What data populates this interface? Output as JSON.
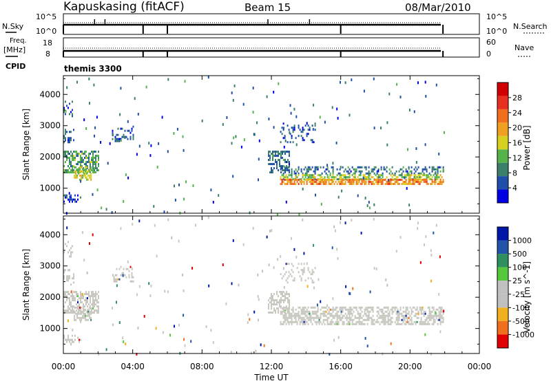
{
  "header": {
    "station": "Kapuskasing (fitACF)",
    "beam": "Beam 15",
    "date": "08/Mar/2010"
  },
  "aux_panels": {
    "nsky_label": "N.Sky",
    "nsky_ticks": [
      "10^5",
      "10^0"
    ],
    "nsearch_label": "N.Search",
    "nsearch_ticks": [
      "10^5",
      "10^0"
    ],
    "freq_label_1": "Freq.",
    "freq_label_2": "[MHz]",
    "freq_ticks": [
      "18",
      "8"
    ],
    "nave_label": "Nave",
    "nave_ticks": [
      "60",
      "0"
    ],
    "cpid_label": "CPID",
    "cpid_value": "themis 3300"
  },
  "x_axis": {
    "label": "Time UT",
    "ticks": [
      "00:00",
      "04:00",
      "08:00",
      "12:00",
      "16:00",
      "20:00",
      "00:00"
    ],
    "tick_hours": [
      0,
      4,
      8,
      12,
      16,
      20,
      24
    ],
    "range_hours": [
      0,
      24
    ]
  },
  "colors": {
    "power": [
      "#0000e6",
      "#1f4fa8",
      "#3a7f6a",
      "#54b44a",
      "#d8d020",
      "#f0a020",
      "#f07020",
      "#e83020",
      "#d00000"
    ],
    "velocity": [
      "#e00000",
      "#f07020",
      "#f0b020",
      "#c0c0c0",
      "#c0c0c0",
      "#56c83c",
      "#2f8f5e",
      "#2255aa",
      "#0018a8"
    ],
    "ground_scatter": "#c8c8c0"
  },
  "chart_data": [
    {
      "type": "heatmap",
      "panel": "power",
      "ylabel": "Slant Range [km]",
      "yticks": [
        1000,
        2000,
        3000,
        4000
      ],
      "ylim": [
        200,
        4600
      ],
      "xlim": [
        0,
        24
      ],
      "colorbar": {
        "label": "Power [dB]",
        "ticks": [
          "4",
          "8",
          "12",
          "16",
          "20",
          "24",
          "28"
        ],
        "range": [
          0,
          30
        ]
      },
      "regions": [
        {
          "t": [
            0.0,
            2.0
          ],
          "r": [
            1500,
            2200
          ],
          "v": 10,
          "density": 0.55
        },
        {
          "t": [
            0.6,
            1.6
          ],
          "r": [
            1300,
            1700
          ],
          "v": 14,
          "density": 0.5
        },
        {
          "t": [
            0.0,
            0.6
          ],
          "r": [
            2400,
            2900
          ],
          "v": 6,
          "density": 0.35
        },
        {
          "t": [
            0.0,
            0.5
          ],
          "r": [
            3300,
            3800
          ],
          "v": 5,
          "density": 0.25
        },
        {
          "t": [
            0.0,
            1.0
          ],
          "r": [
            600,
            800
          ],
          "v": 5,
          "density": 0.4
        },
        {
          "t": [
            2.8,
            4.0
          ],
          "r": [
            2500,
            3000
          ],
          "v": 6,
          "density": 0.3
        },
        {
          "t": [
            11.8,
            13.0
          ],
          "r": [
            1500,
            2200
          ],
          "v": 7,
          "density": 0.5
        },
        {
          "t": [
            12.5,
            21.9
          ],
          "r": [
            1450,
            1700
          ],
          "v": 7,
          "density": 0.35
        },
        {
          "t": [
            12.5,
            21.9
          ],
          "r": [
            1300,
            1450
          ],
          "v": 13,
          "density": 0.6
        },
        {
          "t": [
            12.5,
            21.9
          ],
          "r": [
            1150,
            1300
          ],
          "v": 20,
          "density": 0.75
        },
        {
          "t": [
            12.5,
            14.5
          ],
          "r": [
            2500,
            3100
          ],
          "v": 5,
          "density": 0.18
        }
      ]
    },
    {
      "type": "heatmap",
      "panel": "velocity",
      "ylabel": "Slant Range [km]",
      "yticks": [
        1000,
        2000,
        3000,
        4000
      ],
      "ylim": [
        200,
        4600
      ],
      "xlim": [
        0,
        24
      ],
      "colorbar": {
        "label": "Velocity [m s^-1]",
        "ticks": [
          "1000",
          "500",
          "100",
          "25",
          "-25",
          "-100",
          "-500",
          "-1000"
        ],
        "range": [
          -1000,
          1000
        ]
      },
      "regions": [
        {
          "t": [
            0.0,
            2.0
          ],
          "r": [
            1500,
            2200
          ],
          "v": 0,
          "density": 0.55
        },
        {
          "t": [
            0.6,
            1.6
          ],
          "r": [
            1300,
            1700
          ],
          "v": 0,
          "density": 0.5
        },
        {
          "t": [
            0.0,
            0.6
          ],
          "r": [
            2400,
            2900
          ],
          "v": 0,
          "density": 0.35
        },
        {
          "t": [
            0.0,
            0.5
          ],
          "r": [
            3300,
            3800
          ],
          "v": 0,
          "density": 0.25
        },
        {
          "t": [
            0.0,
            1.0
          ],
          "r": [
            600,
            800
          ],
          "v": 0,
          "density": 0.4
        },
        {
          "t": [
            2.8,
            4.0
          ],
          "r": [
            2500,
            3000
          ],
          "v": 0,
          "density": 0.3
        },
        {
          "t": [
            11.8,
            13.0
          ],
          "r": [
            1500,
            2200
          ],
          "v": 0,
          "density": 0.5
        },
        {
          "t": [
            12.5,
            21.9
          ],
          "r": [
            1150,
            1700
          ],
          "v": 0,
          "density": 0.6
        },
        {
          "t": [
            12.5,
            14.5
          ],
          "r": [
            2500,
            3100
          ],
          "v": 0,
          "density": 0.18
        }
      ]
    }
  ]
}
